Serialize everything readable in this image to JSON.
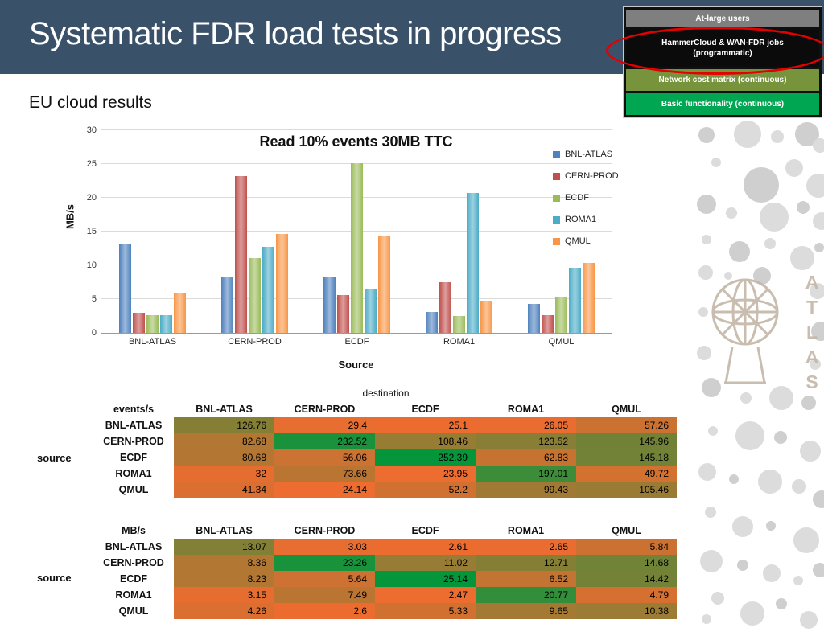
{
  "slide": {
    "title": "Systematic FDR load tests in progress",
    "subtitle": "EU cloud results"
  },
  "status_legend": {
    "items": [
      {
        "label": "At-large users",
        "color": "#7f7f7f",
        "circled": false
      },
      {
        "label": "HammerCloud & WAN-FDR jobs (programmatic)",
        "color": "#0b0b0b",
        "circled": true
      },
      {
        "label": "Network cost matrix (continuous)",
        "color": "#77933c",
        "circled": false
      },
      {
        "label": "Basic functionality (continuous)",
        "color": "#00a651",
        "circled": false
      }
    ],
    "annotation_color": "#e30000"
  },
  "chart_data": {
    "type": "bar",
    "title": "Read 10% events 30MB TTC",
    "xlabel": "Source",
    "ylabel": "MB/s",
    "ylim": [
      0,
      30
    ],
    "yticks": [
      0,
      5,
      10,
      15,
      20,
      25,
      30
    ],
    "grid": true,
    "legend_position": "right",
    "categories": [
      "BNL-ATLAS",
      "CERN-PROD",
      "ECDF",
      "ROMA1",
      "QMUL"
    ],
    "series": [
      {
        "name": "BNL-ATLAS",
        "color": "#4f81bd",
        "values": [
          13.07,
          8.36,
          8.23,
          3.15,
          4.26
        ]
      },
      {
        "name": "CERN-PROD",
        "color": "#c0504d",
        "values": [
          3.03,
          23.26,
          5.64,
          7.49,
          2.6
        ]
      },
      {
        "name": "ECDF",
        "color": "#9bbb59",
        "values": [
          2.61,
          11.02,
          25.14,
          2.47,
          5.33
        ]
      },
      {
        "name": "ROMA1",
        "color": "#4bacc6",
        "values": [
          2.65,
          12.71,
          6.52,
          20.77,
          9.65
        ]
      },
      {
        "name": "QMUL",
        "color": "#f79646",
        "values": [
          5.84,
          14.68,
          14.42,
          4.79,
          10.38
        ]
      }
    ]
  },
  "tables": [
    {
      "unit_label": "events/s",
      "corner_top": "destination",
      "side_label": "source",
      "heat_scale": {
        "low": "#ED6C30",
        "high": "#05963C"
      },
      "columns": [
        "BNL-ATLAS",
        "CERN-PROD",
        "ECDF",
        "ROMA1",
        "QMUL"
      ],
      "rows": [
        {
          "label": "BNL-ATLAS",
          "values": [
            "126.76",
            "29.4",
            "25.1",
            "26.05",
            "57.26"
          ]
        },
        {
          "label": "CERN-PROD",
          "values": [
            "82.68",
            "232.52",
            "108.46",
            "123.52",
            "145.96"
          ]
        },
        {
          "label": "ECDF",
          "values": [
            "80.68",
            "56.06",
            "252.39",
            "62.83",
            "145.18"
          ]
        },
        {
          "label": "ROMA1",
          "values": [
            "32",
            "73.66",
            "23.95",
            "197.01",
            "49.72"
          ]
        },
        {
          "label": "QMUL",
          "values": [
            "41.34",
            "24.14",
            "52.2",
            "99.43",
            "105.46"
          ]
        }
      ]
    },
    {
      "unit_label": "MB/s",
      "corner_top": "",
      "side_label": "source",
      "heat_scale": {
        "low": "#ED6C30",
        "high": "#05963C"
      },
      "columns": [
        "BNL-ATLAS",
        "CERN-PROD",
        "ECDF",
        "ROMA1",
        "QMUL"
      ],
      "rows": [
        {
          "label": "BNL-ATLAS",
          "values": [
            "13.07",
            "3.03",
            "2.61",
            "2.65",
            "5.84"
          ]
        },
        {
          "label": "CERN-PROD",
          "values": [
            "8.36",
            "23.26",
            "11.02",
            "12.71",
            "14.68"
          ]
        },
        {
          "label": "ECDF",
          "values": [
            "8.23",
            "5.64",
            "25.14",
            "6.52",
            "14.42"
          ]
        },
        {
          "label": "ROMA1",
          "values": [
            "3.15",
            "7.49",
            "2.47",
            "20.77",
            "4.79"
          ]
        },
        {
          "label": "QMUL",
          "values": [
            "4.26",
            "2.6",
            "5.33",
            "9.65",
            "10.38"
          ]
        }
      ]
    }
  ],
  "watermark": {
    "text": "ATLAS"
  }
}
